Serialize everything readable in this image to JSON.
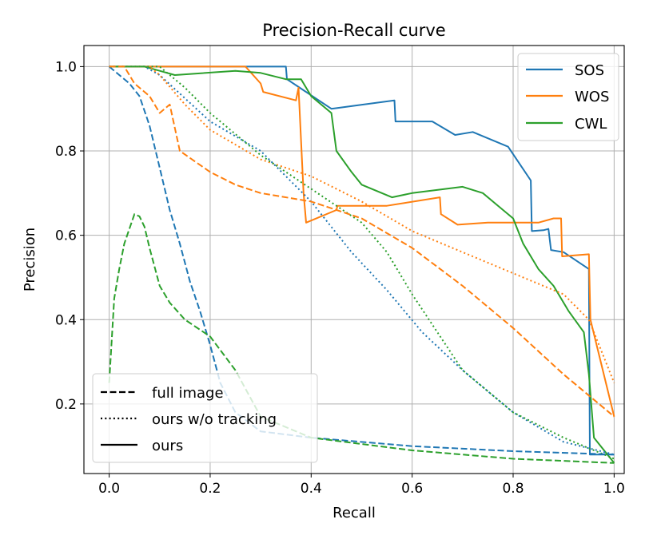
{
  "chart_data": {
    "type": "line",
    "title": "Precision-Recall curve",
    "xlabel": "Recall",
    "ylabel": "Precision",
    "xlim": [
      -0.05,
      1.02
    ],
    "ylim": [
      0.035,
      1.05
    ],
    "xticks": [
      0.0,
      0.2,
      0.4,
      0.6,
      0.8,
      1.0
    ],
    "yticks": [
      0.2,
      0.4,
      0.6,
      0.8,
      1.0
    ],
    "xtick_labels": [
      "0.0",
      "0.2",
      "0.4",
      "0.6",
      "0.8",
      "1.0"
    ],
    "ytick_labels": [
      "0.2",
      "0.4",
      "0.6",
      "0.8",
      "1.0"
    ],
    "grid": true,
    "color_legend": {
      "position": "top-right",
      "entries": [
        {
          "label": "SOS",
          "color": "#1f77b4"
        },
        {
          "label": "WOS",
          "color": "#ff7f0e"
        },
        {
          "label": "CWL",
          "color": "#2ca02c"
        }
      ]
    },
    "style_legend": {
      "position": "bottom-left",
      "entries": [
        {
          "label": "full image",
          "dash": "dashed"
        },
        {
          "label": "ours w/o tracking",
          "dash": "dotted"
        },
        {
          "label": "ours",
          "dash": "solid"
        }
      ]
    },
    "series": [
      {
        "name": "SOS ours",
        "color": "#1f77b4",
        "dash": "solid",
        "x": [
          0.0,
          0.35,
          0.352,
          0.44,
          0.565,
          0.567,
          0.64,
          0.685,
          0.72,
          0.79,
          0.835,
          0.837,
          0.86,
          0.87,
          0.875,
          0.9,
          0.95,
          0.952,
          1.0
        ],
        "y": [
          1.0,
          1.0,
          0.97,
          0.9,
          0.92,
          0.87,
          0.87,
          0.838,
          0.845,
          0.81,
          0.73,
          0.61,
          0.612,
          0.615,
          0.565,
          0.56,
          0.52,
          0.08,
          0.08
        ]
      },
      {
        "name": "WOS ours",
        "color": "#ff7f0e",
        "dash": "solid",
        "x": [
          0.0,
          0.27,
          0.3,
          0.305,
          0.37,
          0.375,
          0.385,
          0.39,
          0.45,
          0.452,
          0.55,
          0.655,
          0.657,
          0.69,
          0.75,
          0.85,
          0.88,
          0.895,
          0.897,
          0.95,
          0.953,
          1.0
        ],
        "y": [
          1.0,
          1.0,
          0.96,
          0.94,
          0.92,
          0.95,
          0.7,
          0.63,
          0.66,
          0.67,
          0.67,
          0.69,
          0.65,
          0.625,
          0.63,
          0.63,
          0.64,
          0.64,
          0.55,
          0.555,
          0.4,
          0.17
        ]
      },
      {
        "name": "CWL ours",
        "color": "#2ca02c",
        "dash": "solid",
        "x": [
          0.0,
          0.07,
          0.1,
          0.13,
          0.25,
          0.3,
          0.35,
          0.38,
          0.4,
          0.44,
          0.45,
          0.48,
          0.5,
          0.56,
          0.6,
          0.7,
          0.74,
          0.76,
          0.8,
          0.82,
          0.85,
          0.88,
          0.91,
          0.94,
          0.95,
          0.96,
          1.0
        ],
        "y": [
          1.0,
          1.0,
          0.99,
          0.98,
          0.99,
          0.985,
          0.97,
          0.97,
          0.93,
          0.89,
          0.8,
          0.75,
          0.72,
          0.69,
          0.7,
          0.715,
          0.7,
          0.68,
          0.64,
          0.58,
          0.52,
          0.48,
          0.42,
          0.37,
          0.27,
          0.12,
          0.06
        ]
      },
      {
        "name": "SOS ours w/o tracking",
        "color": "#1f77b4",
        "dash": "dotted",
        "x": [
          0.0,
          0.07,
          0.1,
          0.2,
          0.3,
          0.4,
          0.48,
          0.55,
          0.62,
          0.7,
          0.8,
          0.9,
          1.0
        ],
        "y": [
          1.0,
          1.0,
          0.98,
          0.87,
          0.8,
          0.68,
          0.56,
          0.47,
          0.37,
          0.28,
          0.18,
          0.11,
          0.08
        ]
      },
      {
        "name": "WOS ours w/o tracking",
        "color": "#ff7f0e",
        "dash": "dotted",
        "x": [
          0.0,
          0.08,
          0.1,
          0.15,
          0.2,
          0.3,
          0.4,
          0.5,
          0.6,
          0.7,
          0.8,
          0.9,
          0.95,
          1.0
        ],
        "y": [
          1.0,
          1.0,
          0.98,
          0.91,
          0.85,
          0.78,
          0.74,
          0.68,
          0.61,
          0.56,
          0.51,
          0.46,
          0.4,
          0.25
        ]
      },
      {
        "name": "CWL ours w/o tracking",
        "color": "#2ca02c",
        "dash": "dotted",
        "x": [
          0.0,
          0.1,
          0.15,
          0.2,
          0.3,
          0.4,
          0.5,
          0.55,
          0.6,
          0.7,
          0.8,
          0.9,
          1.0
        ],
        "y": [
          1.0,
          1.0,
          0.95,
          0.89,
          0.79,
          0.71,
          0.63,
          0.56,
          0.46,
          0.28,
          0.18,
          0.12,
          0.07
        ]
      },
      {
        "name": "SOS full image",
        "color": "#1f77b4",
        "dash": "dashed",
        "x": [
          0.0,
          0.04,
          0.06,
          0.08,
          0.1,
          0.12,
          0.14,
          0.16,
          0.18,
          0.2,
          0.22,
          0.25,
          0.3,
          0.4,
          0.6,
          0.8,
          1.0
        ],
        "y": [
          1.0,
          0.96,
          0.93,
          0.86,
          0.76,
          0.66,
          0.58,
          0.49,
          0.42,
          0.34,
          0.25,
          0.18,
          0.135,
          0.12,
          0.1,
          0.088,
          0.08
        ]
      },
      {
        "name": "WOS full image",
        "color": "#ff7f0e",
        "dash": "dashed",
        "x": [
          0.0,
          0.03,
          0.05,
          0.08,
          0.1,
          0.12,
          0.14,
          0.2,
          0.25,
          0.3,
          0.4,
          0.5,
          0.6,
          0.7,
          0.8,
          0.9,
          0.95,
          1.0
        ],
        "y": [
          1.0,
          1.0,
          0.96,
          0.93,
          0.89,
          0.91,
          0.8,
          0.75,
          0.72,
          0.7,
          0.68,
          0.64,
          0.57,
          0.48,
          0.38,
          0.27,
          0.22,
          0.17
        ]
      },
      {
        "name": "CWL full image",
        "color": "#2ca02c",
        "dash": "dashed",
        "x": [
          0.0,
          0.01,
          0.02,
          0.03,
          0.05,
          0.06,
          0.07,
          0.08,
          0.1,
          0.12,
          0.15,
          0.2,
          0.25,
          0.3,
          0.4,
          0.6,
          0.8,
          1.0
        ],
        "y": [
          0.25,
          0.45,
          0.52,
          0.58,
          0.65,
          0.645,
          0.62,
          0.57,
          0.48,
          0.44,
          0.4,
          0.36,
          0.28,
          0.17,
          0.12,
          0.09,
          0.07,
          0.06
        ]
      }
    ]
  }
}
